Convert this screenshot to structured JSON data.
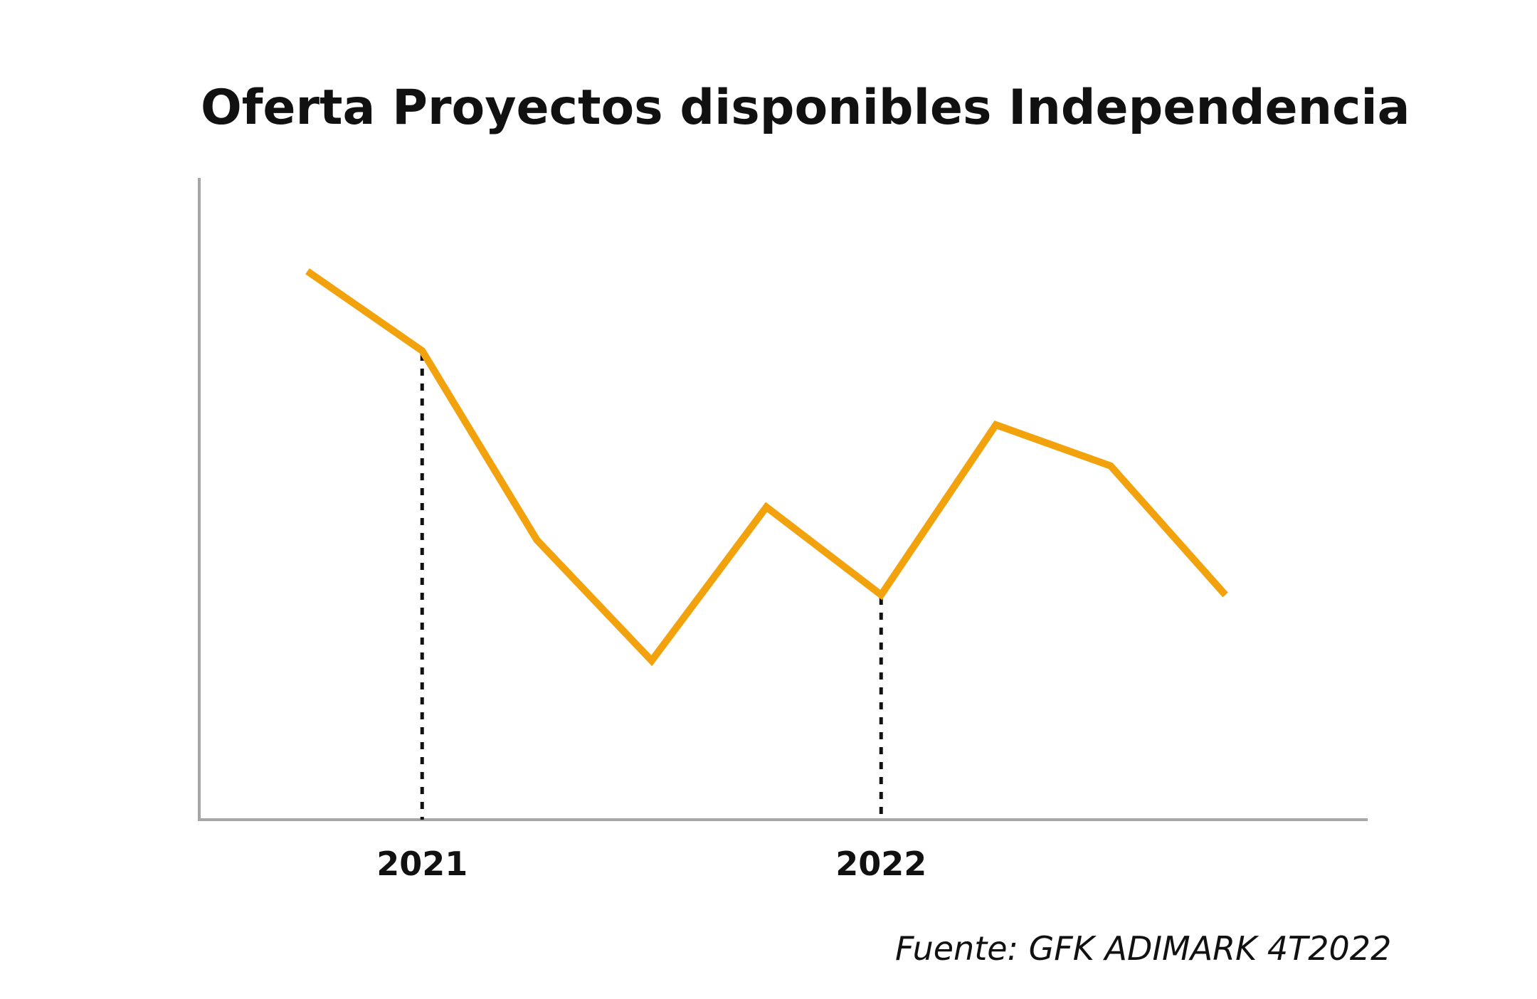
{
  "chart_data": {
    "type": "line",
    "title": "Oferta Proyectos disponibles Independencia",
    "xlabel": "",
    "ylabel": "",
    "x_ticks": [
      {
        "index": 1,
        "label": "2021"
      },
      {
        "index": 5,
        "label": "2022"
      }
    ],
    "marker_lines": [
      1,
      5
    ],
    "series": [
      {
        "color": "#F2A20C",
        "values": [
          100,
          85.5,
          51,
          29,
          57,
          41,
          72,
          64.5,
          41
        ]
      }
    ],
    "ylim": [
      0,
      110
    ],
    "grid": false,
    "legend": "none",
    "source": "Fuente: GFK ADIMARK 4T2022"
  }
}
